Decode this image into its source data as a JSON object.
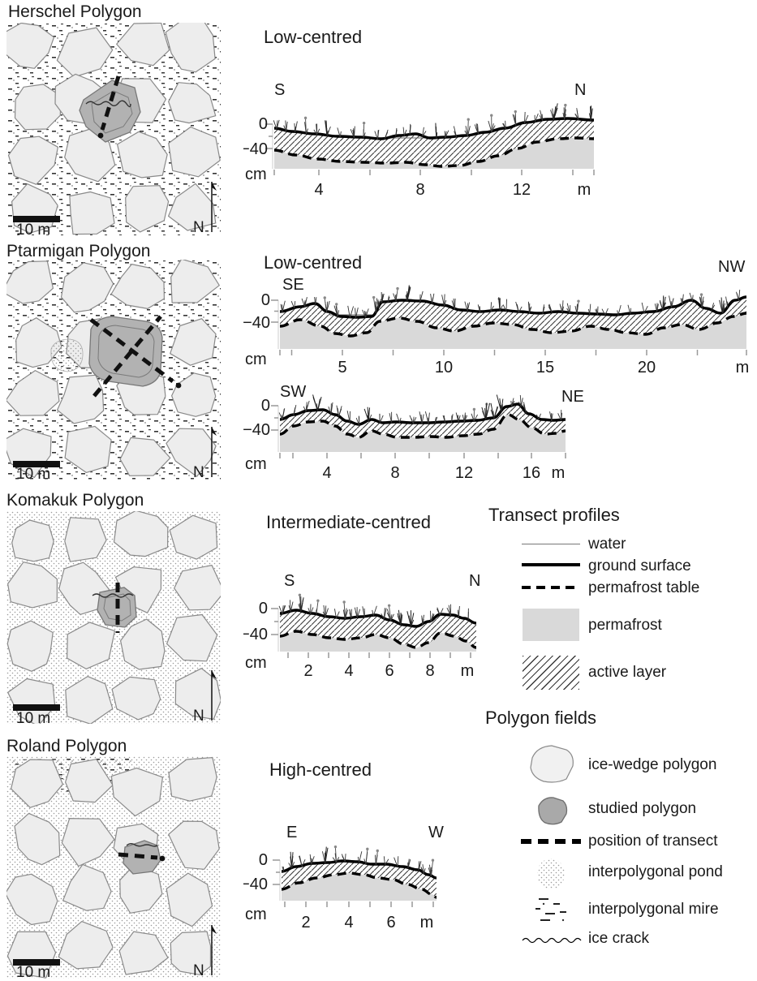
{
  "figure": {
    "description": "Polygon field maps and transect profiles"
  },
  "panels": [
    {
      "map_title": "Herschel Polygon",
      "scale_label": "10 m",
      "north_label": "N",
      "profiles": [
        {
          "type_label": "Low-centred",
          "start_label": "S",
          "end_label": "N",
          "y_unit": "cm",
          "x_unit": "m",
          "y_ticks": [
            "0",
            "−40"
          ],
          "x_ticks": [
            "4",
            "8",
            "12"
          ]
        }
      ]
    },
    {
      "map_title": "Ptarmigan Polygon",
      "scale_label": "10 m",
      "north_label": "N",
      "profiles": [
        {
          "type_label": "Low-centred",
          "start_label": "SE",
          "end_label": "NW",
          "y_unit": "cm",
          "x_unit": "m",
          "y_ticks": [
            "0",
            "−40"
          ],
          "x_ticks": [
            "5",
            "10",
            "15",
            "20"
          ]
        },
        {
          "start_label": "SW",
          "end_label": "NE",
          "y_unit": "cm",
          "x_unit": "m",
          "y_ticks": [
            "0",
            "−40"
          ],
          "x_ticks": [
            "4",
            "8",
            "12",
            "16"
          ]
        }
      ]
    },
    {
      "map_title": "Komakuk Polygon",
      "scale_label": "10 m",
      "north_label": "N",
      "profiles": [
        {
          "type_label": "Intermediate-centred",
          "start_label": "S",
          "end_label": "N",
          "y_unit": "cm",
          "x_unit": "m",
          "y_ticks": [
            "0",
            "−40"
          ],
          "x_ticks": [
            "2",
            "4",
            "6",
            "8"
          ]
        }
      ]
    },
    {
      "map_title": "Roland Polygon",
      "scale_label": "10 m",
      "north_label": "N",
      "profiles": [
        {
          "type_label": "High-centred",
          "start_label": "E",
          "end_label": "W",
          "y_unit": "cm",
          "x_unit": "m",
          "y_ticks": [
            "0",
            "−40"
          ],
          "x_ticks": [
            "2",
            "4",
            "6"
          ]
        }
      ]
    }
  ],
  "legend": {
    "transect_profiles": {
      "title": "Transect profiles",
      "items": [
        {
          "label": "water",
          "symbol": "thin-line"
        },
        {
          "label": "ground surface",
          "symbol": "thick-line"
        },
        {
          "label": "permafrost table",
          "symbol": "dashed-line"
        },
        {
          "label": "permafrost",
          "symbol": "gray-fill",
          "color": "#d9d9d9"
        },
        {
          "label": "active layer",
          "symbol": "diagonal-hatch"
        }
      ]
    },
    "polygon_fields": {
      "title": "Polygon fields",
      "items": [
        {
          "label": "ice-wedge polygon",
          "symbol": "light-polygon",
          "color": "#f0f0f0"
        },
        {
          "label": "studied polygon",
          "symbol": "dark-polygon",
          "color": "#b0b0b0"
        },
        {
          "label": "position of transect",
          "symbol": "bold-dashed-line"
        },
        {
          "label": "interpolygonal pond",
          "symbol": "dotted-texture"
        },
        {
          "label": "interpolygonal mire",
          "symbol": "dash-texture"
        },
        {
          "label": "ice crack",
          "symbol": "wavy-line"
        }
      ]
    }
  },
  "chart_data": [
    {
      "type": "area",
      "panel": "Herschel Polygon",
      "title": "Low-centred",
      "direction": "S to N",
      "x_unit": "m",
      "y_unit": "cm",
      "x_ticks": [
        4,
        8,
        12
      ],
      "y_ticks": [
        0,
        -40
      ],
      "x": [
        0,
        2,
        4,
        6,
        8,
        10,
        12,
        14
      ],
      "ground_surface": [
        -7,
        -16,
        -20,
        -24,
        -21,
        -22,
        -12,
        -6
      ],
      "permafrost_table": [
        -43,
        -56,
        -61,
        -63,
        -65,
        -61,
        -40,
        -23
      ]
    },
    {
      "type": "area",
      "panel": "Ptarmigan Polygon",
      "title": "Low-centred",
      "direction": "SE to NW",
      "x_unit": "m",
      "y_unit": "cm",
      "x_ticks": [
        5,
        10,
        15,
        20
      ],
      "y_ticks": [
        0,
        -40
      ],
      "x": [
        0,
        2,
        4,
        6,
        8,
        10,
        12,
        14,
        16,
        18,
        20,
        22,
        24
      ],
      "ground_surface": [
        -21,
        -8,
        -30,
        -28,
        -3,
        -9,
        -19,
        -21,
        -24,
        -26,
        -12,
        -22,
        -2
      ],
      "permafrost_table": [
        -47,
        -36,
        -62,
        -58,
        -33,
        -43,
        -49,
        -55,
        -58,
        -61,
        -49,
        -45,
        -24
      ]
    },
    {
      "type": "area",
      "panel": "Ptarmigan Polygon",
      "title": "Low-centred",
      "direction": "SW to NE",
      "x_unit": "m",
      "y_unit": "cm",
      "x_ticks": [
        4,
        8,
        12,
        16
      ],
      "y_ticks": [
        0,
        -40
      ],
      "x": [
        0,
        2,
        4,
        6,
        8,
        10,
        12,
        14,
        16,
        17
      ],
      "ground_surface": [
        -23,
        -9,
        -26,
        -28,
        -27,
        -28,
        -25,
        -3,
        -24,
        -23
      ],
      "permafrost_table": [
        -47,
        -26,
        -51,
        -48,
        -52,
        -50,
        -40,
        -15,
        -46,
        -41
      ]
    },
    {
      "type": "area",
      "panel": "Komakuk Polygon",
      "title": "Intermediate-centred",
      "direction": "S to N",
      "x_unit": "m",
      "y_unit": "cm",
      "x_ticks": [
        2,
        4,
        6,
        8
      ],
      "y_ticks": [
        0,
        -40
      ],
      "x": [
        0,
        1,
        2,
        3,
        4,
        5,
        6,
        7,
        8,
        9
      ],
      "ground_surface": [
        -8,
        -9,
        -14,
        -15,
        -12,
        -11,
        -22,
        -27,
        -10,
        -16
      ],
      "permafrost_table": [
        -43,
        -37,
        -45,
        -47,
        -44,
        -41,
        -55,
        -59,
        -38,
        -49
      ]
    },
    {
      "type": "area",
      "panel": "Roland Polygon",
      "title": "High-centred",
      "direction": "E to W",
      "x_unit": "m",
      "y_unit": "cm",
      "x_ticks": [
        2,
        4,
        6
      ],
      "y_ticks": [
        0,
        -40
      ],
      "x": [
        0,
        1,
        2,
        3,
        4,
        5,
        6,
        7
      ],
      "ground_surface": [
        -18,
        -10,
        -5,
        -3,
        -3,
        -6,
        -13,
        -25
      ],
      "permafrost_table": [
        -46,
        -36,
        -28,
        -23,
        -22,
        -28,
        -40,
        -56
      ]
    }
  ]
}
